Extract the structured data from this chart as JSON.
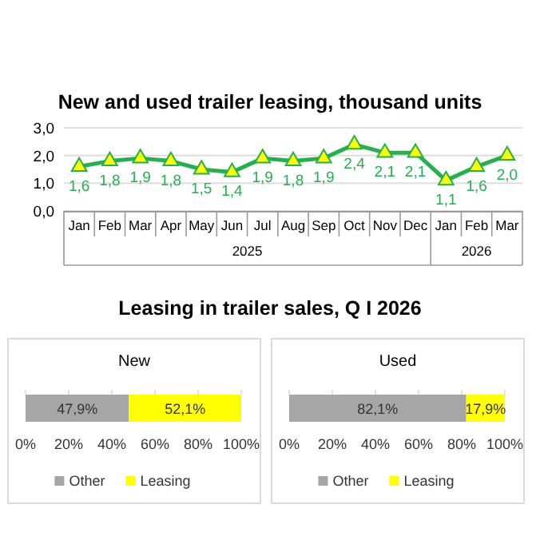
{
  "chart_data": [
    {
      "type": "line",
      "title": "New and used trailer leasing, thousand units",
      "categories": [
        "Jan",
        "Feb",
        "Mar",
        "Apr",
        "May",
        "Jun",
        "Jul",
        "Aug",
        "Sep",
        "Oct",
        "Nov",
        "Dec",
        "Jan",
        "Feb",
        "Mar"
      ],
      "series": [
        {
          "color": "#22b14c",
          "values": [
            1.6,
            1.8,
            1.9,
            1.8,
            1.5,
            1.4,
            1.9,
            1.8,
            1.9,
            2.4,
            2.1,
            2.1,
            1.1,
            1.6,
            2.0
          ],
          "value_labels": [
            "1,6",
            "1,8",
            "1,9",
            "1,8",
            "1,5",
            "1,4",
            "1,9",
            "1,8",
            "1,9",
            "2,4",
            "2,1",
            "2,1",
            "1,1",
            "1,6",
            "2,0"
          ]
        }
      ],
      "ylim": [
        0,
        3
      ],
      "yticks": [
        {
          "value": 0,
          "label": "0,0"
        },
        {
          "value": 1,
          "label": "1,0"
        },
        {
          "value": 2,
          "label": "2,0"
        },
        {
          "value": 3,
          "label": "3,0"
        }
      ],
      "grid": "y",
      "marker": "triangle",
      "line_style": "solid",
      "annotations": [
        "2025",
        "2026"
      ]
    },
    {
      "type": "bar",
      "title": "New",
      "annotations": [
        "Leasing in trailer sales, Q I 2026"
      ],
      "orientation": "horizontal",
      "stacked": true,
      "categories": [
        null
      ],
      "series": [
        {
          "name": "Other",
          "color": "#a6a6a6",
          "values": [
            47.9
          ],
          "value_labels": [
            "47,9%"
          ]
        },
        {
          "name": "Leasing",
          "color": "#ffff00",
          "values": [
            52.1
          ],
          "value_labels": [
            "52,1%"
          ]
        }
      ],
      "xlim": [
        0,
        100
      ],
      "xticks": [
        {
          "value": 0,
          "label": "0%"
        },
        {
          "value": 20,
          "label": "20%"
        },
        {
          "value": 40,
          "label": "40%"
        },
        {
          "value": 60,
          "label": "60%"
        },
        {
          "value": 80,
          "label": "80%"
        },
        {
          "value": 100,
          "label": "100%"
        }
      ],
      "grid": "x",
      "legend": "bottom"
    },
    {
      "type": "bar",
      "title": "Used",
      "orientation": "horizontal",
      "stacked": true,
      "categories": [
        null
      ],
      "series": [
        {
          "name": "Other",
          "color": "#a6a6a6",
          "values": [
            82.1
          ],
          "value_labels": [
            "82,1%"
          ]
        },
        {
          "name": "Leasing",
          "color": "#ffff00",
          "values": [
            17.9
          ],
          "value_labels": [
            "17,9%"
          ]
        }
      ],
      "xlim": [
        0,
        100
      ],
      "xticks": [
        {
          "value": 0,
          "label": "0%"
        },
        {
          "value": 20,
          "label": "20%"
        },
        {
          "value": 40,
          "label": "40%"
        },
        {
          "value": 60,
          "label": "60%"
        },
        {
          "value": 80,
          "label": "80%"
        },
        {
          "value": 100,
          "label": "100%"
        }
      ],
      "grid": "x",
      "legend": "bottom"
    }
  ]
}
